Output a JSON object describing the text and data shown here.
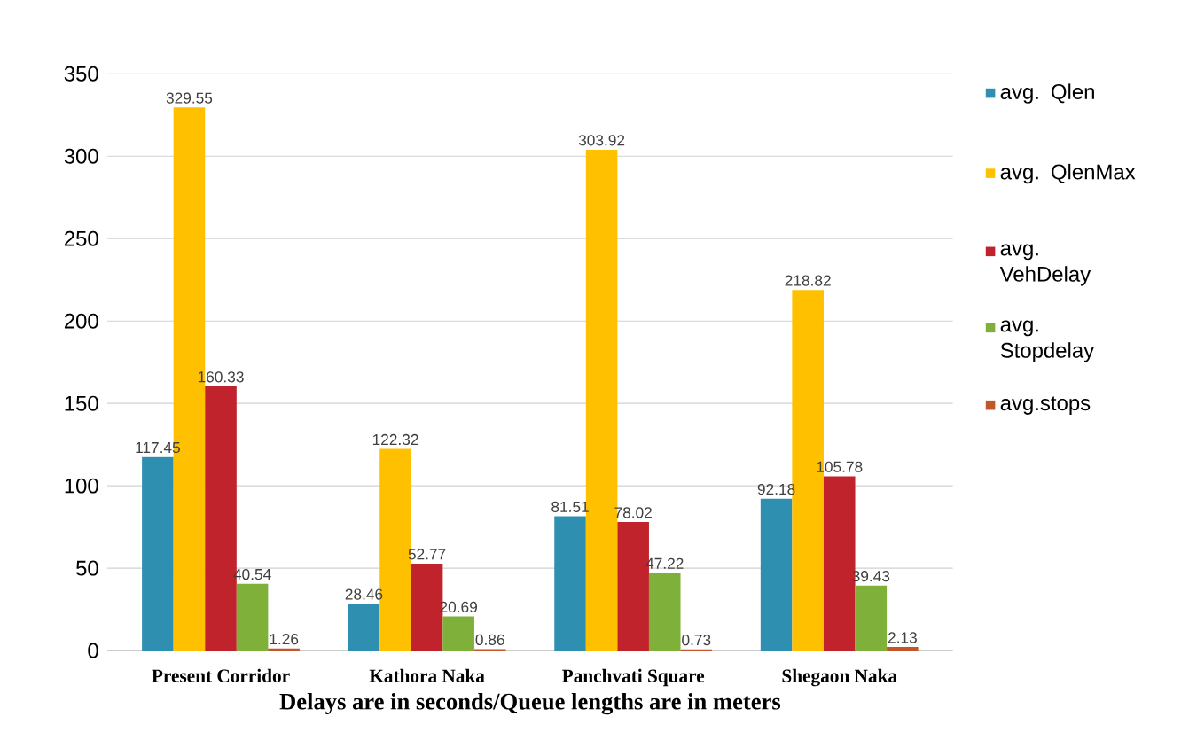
{
  "chart_data": {
    "type": "bar",
    "categories": [
      "Present Corridor",
      "Kathora Naka",
      "Panchvati Square",
      "Shegaon Naka"
    ],
    "xlabel": "Delays are in seconds/Queue lengths are in meters",
    "series": [
      {
        "name": "avg. Qlen",
        "color": "#2e8fb0",
        "values": [
          117.45,
          28.46,
          81.51,
          92.18
        ]
      },
      {
        "name": "avg. QlenMax",
        "color": "#ffc000",
        "values": [
          329.55,
          122.32,
          303.92,
          218.82
        ]
      },
      {
        "name": "avg. VehDelay",
        "color": "#c0232c",
        "values": [
          160.33,
          52.77,
          78.02,
          105.78
        ]
      },
      {
        "name": "avg. Stopdelay",
        "color": "#7fb03a",
        "values": [
          40.54,
          20.69,
          47.22,
          39.43
        ]
      },
      {
        "name": "avg.stops",
        "color": "#c0562a",
        "values": [
          1.26,
          0.86,
          0.73,
          2.13
        ]
      }
    ],
    "ylim": [
      0,
      350
    ],
    "yticks": [
      0,
      50,
      100,
      150,
      200,
      250,
      300,
      350
    ],
    "grid": "y",
    "legend": "right",
    "data_labels": true
  }
}
